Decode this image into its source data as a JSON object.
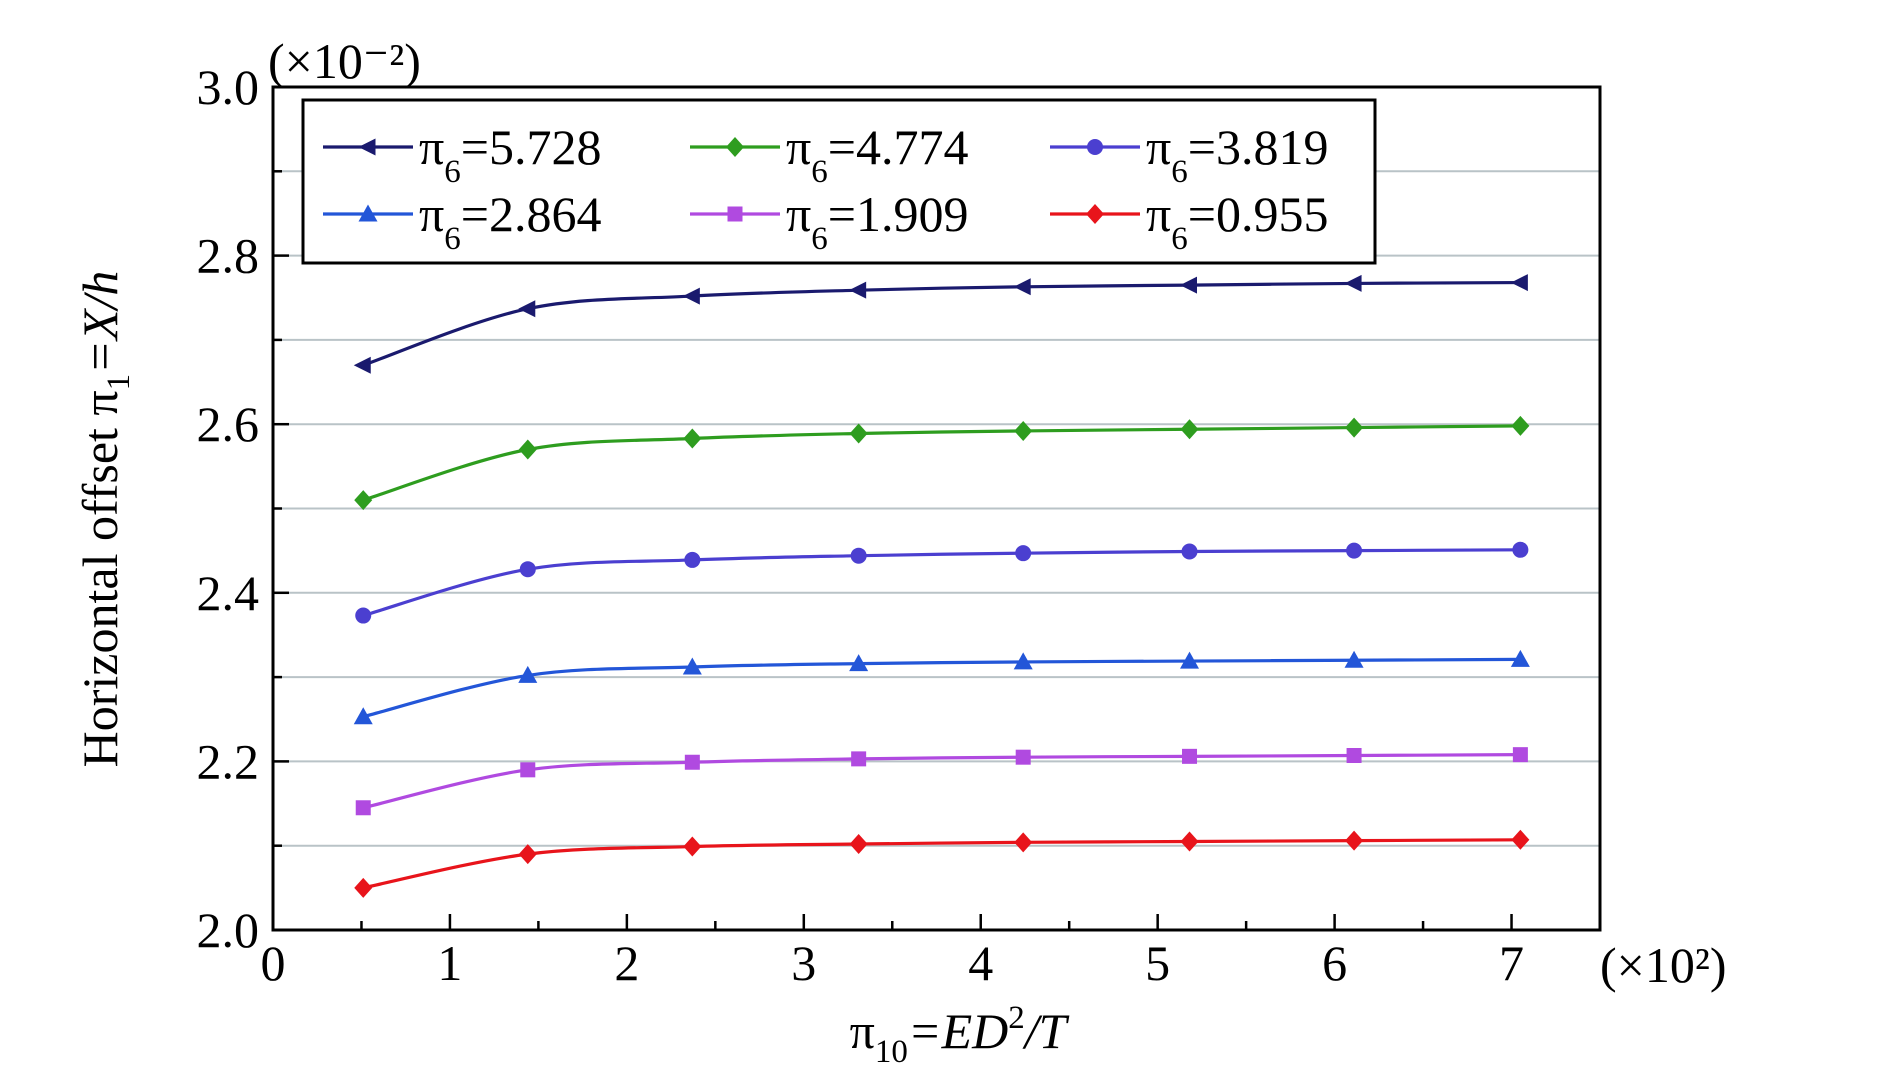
{
  "chart_data": {
    "type": "line",
    "ylabel_parts": {
      "prefix": "Horizontal offset π",
      "sub": "1",
      "suffix": "=X/h"
    },
    "xlabel_parts": {
      "prefix": "π",
      "sub": "10",
      "mid": "=ED",
      "sup": "2",
      "suffix": "/T"
    },
    "y_multiplier": "(×10⁻²)",
    "x_multiplier": "(×10²)",
    "xlim": [
      0,
      7.5
    ],
    "ylim": [
      2.0,
      3.0
    ],
    "x_ticks": [
      0,
      1,
      2,
      3,
      4,
      5,
      6,
      7
    ],
    "y_ticks": [
      2.0,
      2.2,
      2.4,
      2.6,
      2.8,
      3.0
    ],
    "x_tick_labels": [
      "0",
      "1",
      "2",
      "3",
      "4",
      "5",
      "6",
      "7"
    ],
    "y_tick_labels": [
      "2.0",
      "2.2",
      "2.4",
      "2.6",
      "2.8",
      "3.0"
    ],
    "grid": "horizontal",
    "legend_position": "top-left",
    "x": [
      0.51,
      1.44,
      2.37,
      3.31,
      4.24,
      5.18,
      6.11,
      7.05
    ],
    "series": [
      {
        "name": "π6=5.728",
        "name_parts": {
          "prefix": "π",
          "sub": "6",
          "suffix": "=5.728"
        },
        "color": "#1a1a6e",
        "marker": "triangle-left",
        "values": [
          2.67,
          2.737,
          2.752,
          2.759,
          2.763,
          2.765,
          2.767,
          2.768
        ]
      },
      {
        "name": "π6=4.774",
        "name_parts": {
          "prefix": "π",
          "sub": "6",
          "suffix": "=4.774"
        },
        "color": "#2e9d1f",
        "marker": "diamond",
        "values": [
          2.51,
          2.57,
          2.583,
          2.589,
          2.592,
          2.594,
          2.596,
          2.598
        ]
      },
      {
        "name": "π6=3.819",
        "name_parts": {
          "prefix": "π",
          "sub": "6",
          "suffix": "=3.819"
        },
        "color": "#4b3fd0",
        "marker": "circle",
        "values": [
          2.373,
          2.428,
          2.439,
          2.444,
          2.447,
          2.449,
          2.45,
          2.451
        ]
      },
      {
        "name": "π6=2.864",
        "name_parts": {
          "prefix": "π",
          "sub": "6",
          "suffix": "=2.864"
        },
        "color": "#2356d8",
        "marker": "triangle-up",
        "values": [
          2.253,
          2.302,
          2.312,
          2.316,
          2.318,
          2.319,
          2.32,
          2.321
        ]
      },
      {
        "name": "π6=1.909",
        "name_parts": {
          "prefix": "π",
          "sub": "6",
          "suffix": "=1.909"
        },
        "color": "#b04ae0",
        "marker": "square",
        "values": [
          2.145,
          2.19,
          2.199,
          2.203,
          2.205,
          2.206,
          2.207,
          2.208
        ]
      },
      {
        "name": "π6=0.955",
        "name_parts": {
          "prefix": "π",
          "sub": "6",
          "suffix": "=0.955"
        },
        "color": "#e8141b",
        "marker": "diamond",
        "values": [
          2.05,
          2.09,
          2.099,
          2.102,
          2.104,
          2.105,
          2.106,
          2.107
        ]
      }
    ]
  }
}
